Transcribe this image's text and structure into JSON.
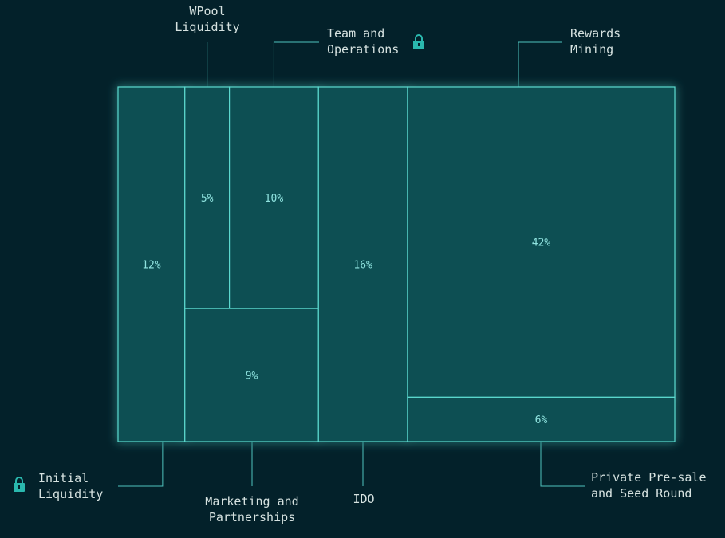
{
  "chart_data": {
    "type": "treemap",
    "categories": [
      {
        "id": "initial",
        "label": "Initial\nLiquidity",
        "value": 12,
        "value_label": "12%",
        "locked": true
      },
      {
        "id": "wpool",
        "label": "WPool\nLiquidity",
        "value": 5,
        "value_label": "5%",
        "locked": false
      },
      {
        "id": "team",
        "label": "Team and\nOperations",
        "value": 10,
        "value_label": "10%",
        "locked": true
      },
      {
        "id": "marketing",
        "label": "Marketing and\nPartnerships",
        "value": 9,
        "value_label": "9%",
        "locked": false
      },
      {
        "id": "ido",
        "label": "IDO",
        "value": 16,
        "value_label": "16%",
        "locked": false
      },
      {
        "id": "rewards",
        "label": "Rewards\nMining",
        "value": 42,
        "value_label": "42%",
        "locked": false
      },
      {
        "id": "private",
        "label": "Private Pre-sale\nand Seed Round",
        "value": 6,
        "value_label": "6%",
        "locked": false
      }
    ],
    "colors": {
      "background": "#03212a",
      "cell": "#0a4f52",
      "border": "#5cd9cf",
      "value_text": "#8fe3df",
      "label_text": "#d6e2e0",
      "lock": "#2ab8ae"
    },
    "lock_icon": "padlock-icon"
  }
}
